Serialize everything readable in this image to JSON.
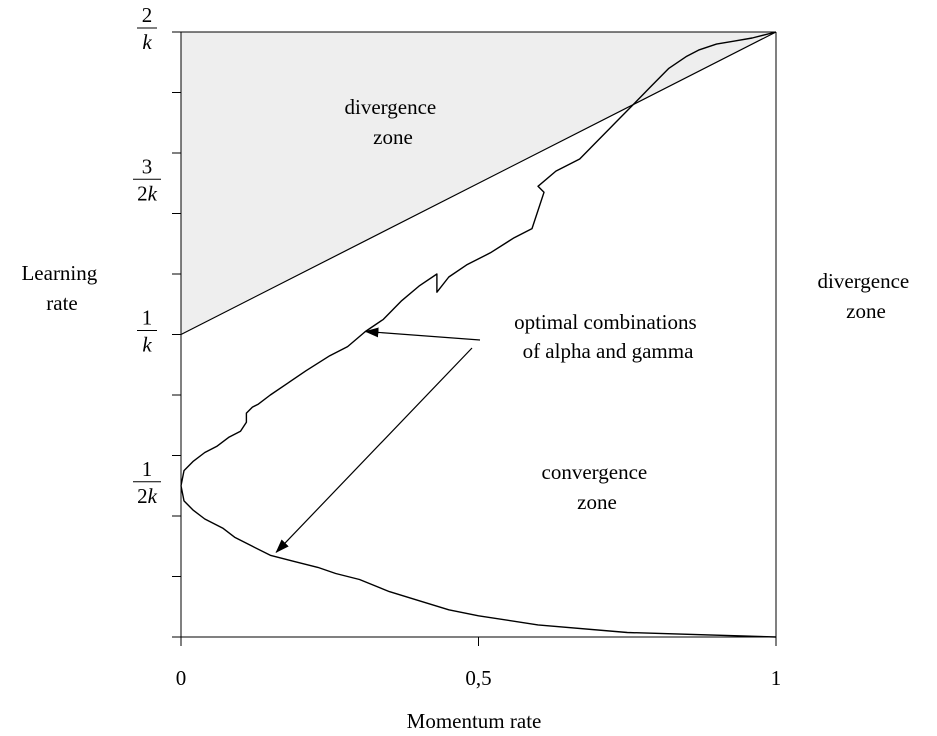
{
  "chart_data": {
    "type": "line",
    "title": "",
    "xlabel": "Momentum rate",
    "ylabel_lines": [
      "Learning",
      "rate"
    ],
    "xlim": [
      0,
      1
    ],
    "ylim": [
      0,
      2
    ],
    "x_ticks": [
      {
        "value": 0,
        "label": "0"
      },
      {
        "value": 0.5,
        "label": "0,5"
      },
      {
        "value": 1,
        "label": "1"
      }
    ],
    "y_ticks": [
      {
        "value": 0.5,
        "num": "1",
        "den_num": "2",
        "den_var": "k"
      },
      {
        "value": 1,
        "num": "1",
        "den_num": "",
        "den_var": "k"
      },
      {
        "value": 1.5,
        "num": "3",
        "den_num": "2",
        "den_var": "k"
      },
      {
        "value": 2,
        "num": "2",
        "den_num": "",
        "den_var": "k"
      }
    ],
    "minor_y_step": 0.2,
    "divergence_region": {
      "description": "shaded triangle above boundary line",
      "vertices": [
        [
          0,
          1
        ],
        [
          0,
          2
        ],
        [
          1,
          2
        ]
      ],
      "fill": "#eeeeee"
    },
    "boundary_line": [
      [
        0,
        1
      ],
      [
        1,
        2
      ]
    ],
    "series": [
      {
        "points": [
          [
            0,
            0.5
          ],
          [
            0.005,
            0.55
          ],
          [
            0.02,
            0.58
          ],
          [
            0.04,
            0.61
          ],
          [
            0.06,
            0.63
          ],
          [
            0.08,
            0.66
          ],
          [
            0.1,
            0.68
          ],
          [
            0.11,
            0.71
          ],
          [
            0.11,
            0.74
          ],
          [
            0.12,
            0.76
          ],
          [
            0.13,
            0.77
          ],
          [
            0.15,
            0.8
          ],
          [
            0.18,
            0.84
          ],
          [
            0.21,
            0.88
          ],
          [
            0.25,
            0.93
          ],
          [
            0.28,
            0.96
          ],
          [
            0.31,
            1.01
          ],
          [
            0.34,
            1.05
          ],
          [
            0.37,
            1.11
          ],
          [
            0.4,
            1.16
          ],
          [
            0.43,
            1.2
          ],
          [
            0.43,
            1.14
          ],
          [
            0.45,
            1.19
          ],
          [
            0.48,
            1.23
          ],
          [
            0.52,
            1.27
          ],
          [
            0.56,
            1.32
          ],
          [
            0.59,
            1.35
          ],
          [
            0.61,
            1.47
          ],
          [
            0.6,
            1.49
          ],
          [
            0.63,
            1.54
          ],
          [
            0.67,
            1.58
          ],
          [
            0.7,
            1.64
          ],
          [
            0.73,
            1.7
          ],
          [
            0.76,
            1.76
          ],
          [
            0.79,
            1.82
          ],
          [
            0.82,
            1.88
          ],
          [
            0.85,
            1.92
          ],
          [
            0.87,
            1.94
          ],
          [
            0.9,
            1.96
          ],
          [
            0.93,
            1.97
          ],
          [
            0.96,
            1.98
          ],
          [
            1,
            2
          ]
        ]
      },
      {
        "points": [
          [
            0,
            0.5
          ],
          [
            0.005,
            0.45
          ],
          [
            0.02,
            0.42
          ],
          [
            0.04,
            0.39
          ],
          [
            0.07,
            0.36
          ],
          [
            0.09,
            0.33
          ],
          [
            0.12,
            0.3
          ],
          [
            0.15,
            0.27
          ],
          [
            0.19,
            0.25
          ],
          [
            0.23,
            0.23
          ],
          [
            0.26,
            0.21
          ],
          [
            0.3,
            0.19
          ],
          [
            0.35,
            0.15
          ],
          [
            0.4,
            0.12
          ],
          [
            0.45,
            0.09
          ],
          [
            0.5,
            0.07
          ],
          [
            0.6,
            0.04
          ],
          [
            0.75,
            0.015
          ],
          [
            1,
            0
          ]
        ]
      }
    ],
    "annotations": [
      {
        "lines": [
          "divergence",
          "zone"
        ],
        "region": "upper-left triangle"
      },
      {
        "lines": [
          "divergence",
          "zone"
        ],
        "region": "right of plot"
      },
      {
        "lines": [
          "convergence",
          "zone"
        ],
        "region": "lower-right interior"
      },
      {
        "lines": [
          "optimal combinations",
          "of alpha and gamma"
        ],
        "arrows_to": [
          [
            0.31,
            1.01
          ],
          [
            0.16,
            0.28
          ]
        ]
      }
    ]
  }
}
